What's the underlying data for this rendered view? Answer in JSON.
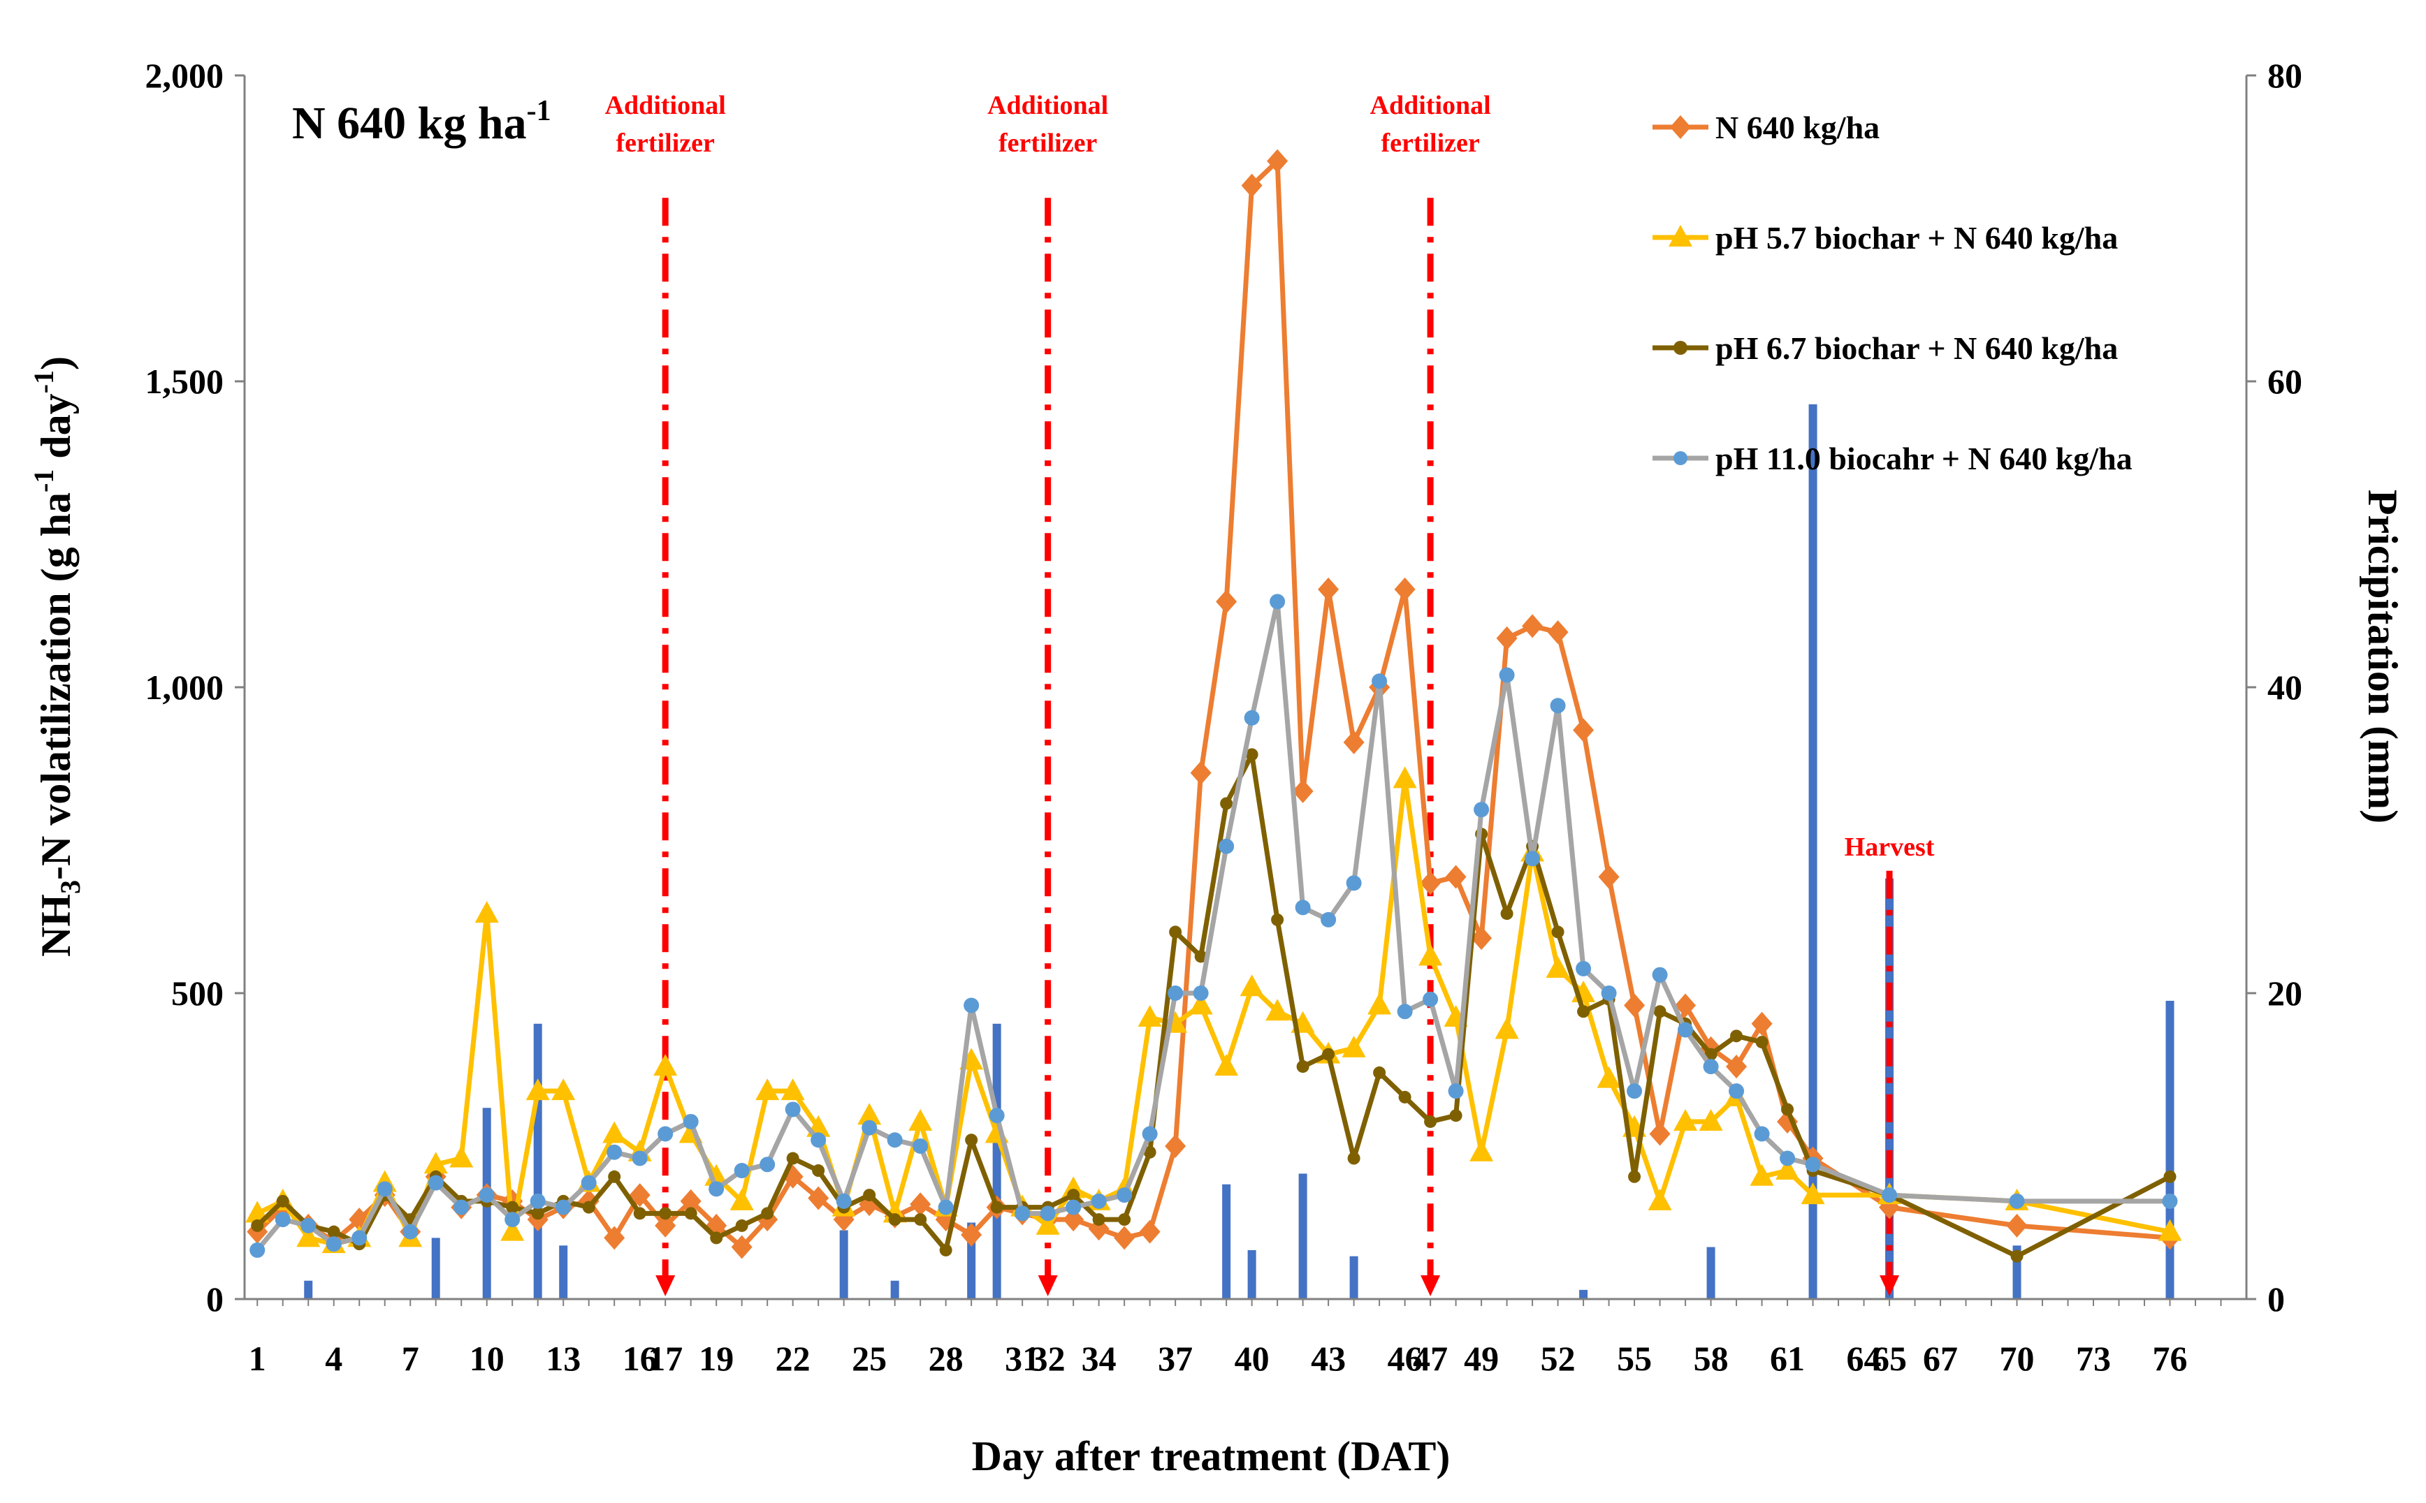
{
  "chart_data": {
    "type": "line",
    "inset_label": "N 640 kg ha",
    "inset_label_sup": "-1",
    "xlabel": "Day after treatment (DAT)",
    "ylabel_left_parts": [
      "NH",
      "3",
      "-N volatilization (g ha",
      "-1",
      " day",
      "-1",
      ")"
    ],
    "ylabel_right": "Pricipitation (mm)",
    "x_range": [
      0.5,
      79
    ],
    "ylim_left": [
      0,
      2000
    ],
    "ylim_right": [
      0,
      80
    ],
    "y_ticks_left": [
      0,
      500,
      1000,
      1500,
      2000
    ],
    "y_tick_labels_left": [
      "0",
      "500",
      "1,000",
      "1,500",
      "2,000"
    ],
    "y_ticks_right": [
      0,
      20,
      40,
      60,
      80
    ],
    "y_tick_labels_right": [
      "0",
      "20",
      "40",
      "60",
      "80"
    ],
    "x_ticks": [
      1,
      4,
      7,
      10,
      13,
      16,
      17,
      19,
      22,
      25,
      28,
      31,
      32,
      34,
      37,
      40,
      43,
      46,
      47,
      49,
      52,
      55,
      58,
      61,
      64,
      65,
      67,
      70,
      73,
      76
    ],
    "x_tick_labels": [
      "1",
      "4",
      "7",
      "10",
      "13",
      "16",
      "17",
      "19",
      "22",
      "25",
      "28",
      "31",
      "32",
      "34",
      "37",
      "40",
      "43",
      "46",
      "47",
      "49",
      "52",
      "55",
      "58",
      "61",
      "64",
      "65",
      "67",
      "70",
      "73",
      "76"
    ],
    "highlight_ticks": [
      17,
      32,
      47,
      65
    ],
    "highlight_color": "#ff0000",
    "annotations": [
      {
        "x": 17,
        "lines": [
          "Additional",
          "fertilizer"
        ],
        "top_value": 1800
      },
      {
        "x": 32,
        "lines": [
          "Additional",
          "fertilizer"
        ],
        "top_value": 1800
      },
      {
        "x": 47,
        "lines": [
          "Additional",
          "fertilizer"
        ],
        "top_value": 1800
      },
      {
        "x": 65,
        "lines": [
          "Harvest"
        ],
        "top_value": 700
      }
    ],
    "x": [
      1,
      2,
      3,
      4,
      5,
      6,
      7,
      8,
      9,
      10,
      11,
      12,
      13,
      14,
      15,
      16,
      17,
      18,
      19,
      20,
      21,
      22,
      23,
      24,
      25,
      26,
      27,
      28,
      29,
      30,
      31,
      32,
      33,
      34,
      35,
      36,
      37,
      38,
      39,
      40,
      41,
      42,
      43,
      44,
      45,
      46,
      47,
      48,
      49,
      50,
      51,
      52,
      53,
      54,
      55,
      56,
      57,
      58,
      59,
      60,
      61,
      62,
      65,
      70,
      76
    ],
    "series": [
      {
        "name": "N 640 kg/ha",
        "color": "#ed7d31",
        "marker": "diamond",
        "values": [
          110,
          150,
          120,
          95,
          130,
          170,
          110,
          200,
          150,
          170,
          160,
          130,
          150,
          160,
          100,
          170,
          120,
          160,
          120,
          85,
          130,
          200,
          165,
          130,
          155,
          135,
          155,
          130,
          105,
          150,
          140,
          130,
          130,
          115,
          100,
          110,
          250,
          860,
          1140,
          1820,
          1860,
          830,
          1160,
          910,
          1000,
          1160,
          680,
          690,
          590,
          1080,
          1100,
          1090,
          930,
          690,
          480,
          270,
          480,
          410,
          380,
          450,
          290,
          230,
          150,
          120,
          100
        ]
      },
      {
        "name": "pH 5.7 biochar + N 640 kg/ha",
        "color": "#ffc000",
        "marker": "triangle",
        "values": [
          140,
          160,
          100,
          90,
          100,
          190,
          100,
          220,
          230,
          630,
          110,
          340,
          340,
          190,
          270,
          240,
          380,
          270,
          200,
          160,
          340,
          340,
          280,
          150,
          300,
          140,
          290,
          150,
          390,
          270,
          150,
          120,
          180,
          160,
          180,
          460,
          450,
          480,
          380,
          510,
          470,
          450,
          400,
          410,
          480,
          850,
          560,
          460,
          240,
          440,
          730,
          540,
          500,
          360,
          280,
          160,
          290,
          290,
          330,
          200,
          210,
          170,
          170,
          160,
          110
        ]
      },
      {
        "name": "pH 6.7 biochar + N 640 kg/ha",
        "color": "#7f6000",
        "marker": "dot",
        "values": [
          120,
          160,
          120,
          110,
          90,
          170,
          130,
          200,
          160,
          160,
          150,
          140,
          160,
          150,
          200,
          140,
          140,
          140,
          100,
          120,
          140,
          230,
          210,
          150,
          170,
          130,
          130,
          80,
          260,
          150,
          150,
          150,
          170,
          130,
          130,
          240,
          600,
          560,
          810,
          890,
          620,
          380,
          400,
          230,
          370,
          330,
          290,
          300,
          760,
          630,
          740,
          600,
          470,
          490,
          200,
          470,
          450,
          400,
          430,
          420,
          310,
          210,
          170,
          70,
          200
        ]
      },
      {
        "name": "pH 11.0 biocahr + N 640 kg/ha",
        "color": "#a5a5a5",
        "marker": "dot",
        "marker_color": "#5b9bd5",
        "values": [
          80,
          130,
          120,
          90,
          100,
          180,
          110,
          190,
          150,
          170,
          130,
          160,
          150,
          190,
          240,
          230,
          270,
          290,
          180,
          210,
          220,
          310,
          260,
          160,
          280,
          260,
          250,
          150,
          480,
          300,
          140,
          140,
          150,
          160,
          170,
          270,
          500,
          500,
          740,
          950,
          1140,
          640,
          620,
          680,
          1010,
          470,
          490,
          340,
          800,
          1020,
          720,
          970,
          540,
          500,
          340,
          530,
          440,
          380,
          340,
          270,
          230,
          220,
          170,
          160,
          160
        ]
      }
    ],
    "precipitation": {
      "name": "Precipitation",
      "color": "#4472c4",
      "x": [
        3,
        8,
        10,
        12,
        13,
        24,
        26,
        29,
        30,
        39,
        40,
        42,
        44,
        53,
        58,
        62,
        65,
        70,
        76
      ],
      "values": [
        1.2,
        4,
        12.5,
        18,
        3.5,
        4.5,
        1.2,
        5,
        18,
        7.5,
        3.2,
        8.2,
        2.8,
        0.6,
        3.4,
        58.5,
        27.5,
        3.5,
        19.5
      ]
    }
  }
}
